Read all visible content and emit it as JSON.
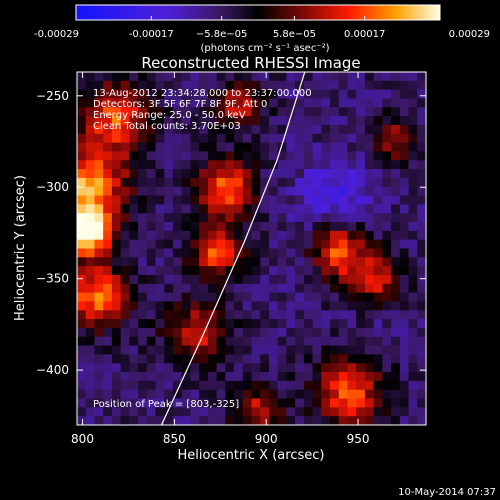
{
  "chart_data": {
    "type": "heatmap",
    "title": "Reconstructed RHESSI Image",
    "xlabel": "Heliocentric X (arcsec)",
    "ylabel": "Heliocentric Y (arcsec)",
    "xlim": [
      797,
      987
    ],
    "ylim": [
      -430,
      -237
    ],
    "x_ticks": [
      800,
      850,
      900,
      950
    ],
    "y_ticks": [
      -250,
      -300,
      -350,
      -400
    ],
    "colorbar": {
      "label": "(photons cm⁻² s⁻¹ asec⁻²)",
      "range": [
        -0.00029,
        0.00029
      ],
      "tick_values": [
        -0.00029,
        -0.00017,
        -5.8e-05,
        5.8e-05,
        0.00017,
        0.00029
      ],
      "tick_labels": [
        "-0.00029",
        "-0.00017",
        "−5.8e−05",
        "5.8e−05",
        "0.00017",
        "0.00029"
      ]
    },
    "annotations": [
      "13-Aug-2012 23:34:28.000 to 23:37:00.000",
      "Detectors: 3F 5F 6F 7F 8F 9F, Att 0",
      "Energy Range: 25.0 - 50.0 keV",
      "Clean     Total counts: 3.70E+03"
    ],
    "peak_label": "Position of Peak = [803,-325]",
    "peak_position": [
      803,
      -325
    ],
    "limb_arc": [
      [
        843,
        -430
      ],
      [
        866,
        -380
      ],
      [
        888,
        -330
      ],
      [
        906,
        -285
      ],
      [
        921,
        -237
      ]
    ],
    "features": [
      {
        "name": "peak",
        "x": 803,
        "y": -325,
        "value": 0.00029,
        "radius": 9
      },
      {
        "name": "left-edge-upper",
        "x": 803,
        "y": -300,
        "value": 0.00022,
        "radius": 15
      },
      {
        "name": "left-edge-lower",
        "x": 808,
        "y": -360,
        "value": 0.0002,
        "radius": 12
      },
      {
        "name": "left-top",
        "x": 818,
        "y": -262,
        "value": 0.00016,
        "radius": 14
      },
      {
        "name": "center-upper",
        "x": 878,
        "y": -300,
        "value": 0.00019,
        "radius": 11
      },
      {
        "name": "center-mid",
        "x": 873,
        "y": -335,
        "value": 0.00017,
        "radius": 10
      },
      {
        "name": "strip-upper",
        "x": 885,
        "y": -255,
        "value": 0.00012,
        "radius": 9
      },
      {
        "name": "strip-lower",
        "x": 862,
        "y": -380,
        "value": 0.00015,
        "radius": 12
      },
      {
        "name": "right-mid",
        "x": 940,
        "y": -335,
        "value": 0.00018,
        "radius": 11
      },
      {
        "name": "right-mid-2",
        "x": 960,
        "y": -350,
        "value": 0.00012,
        "radius": 9
      },
      {
        "name": "bottom-right",
        "x": 945,
        "y": -412,
        "value": 0.00017,
        "radius": 13
      },
      {
        "name": "bottom-center",
        "x": 895,
        "y": -422,
        "value": 0.0001,
        "radius": 10
      },
      {
        "name": "right-upper",
        "x": 970,
        "y": -275,
        "value": 9e-05,
        "radius": 9
      },
      {
        "name": "negative-core",
        "x": 938,
        "y": -305,
        "value": -0.00017,
        "radius": 14
      },
      {
        "name": "negative-left",
        "x": 858,
        "y": -382,
        "value": -0.0001,
        "radius": 9
      },
      {
        "name": "negative-mid",
        "x": 918,
        "y": -340,
        "value": -8e-05,
        "radius": 12
      },
      {
        "name": "negative-right",
        "x": 965,
        "y": -370,
        "value": -7e-05,
        "radius": 10
      }
    ]
  },
  "footer": {
    "timestamp": "10-May-2014 07:37"
  }
}
